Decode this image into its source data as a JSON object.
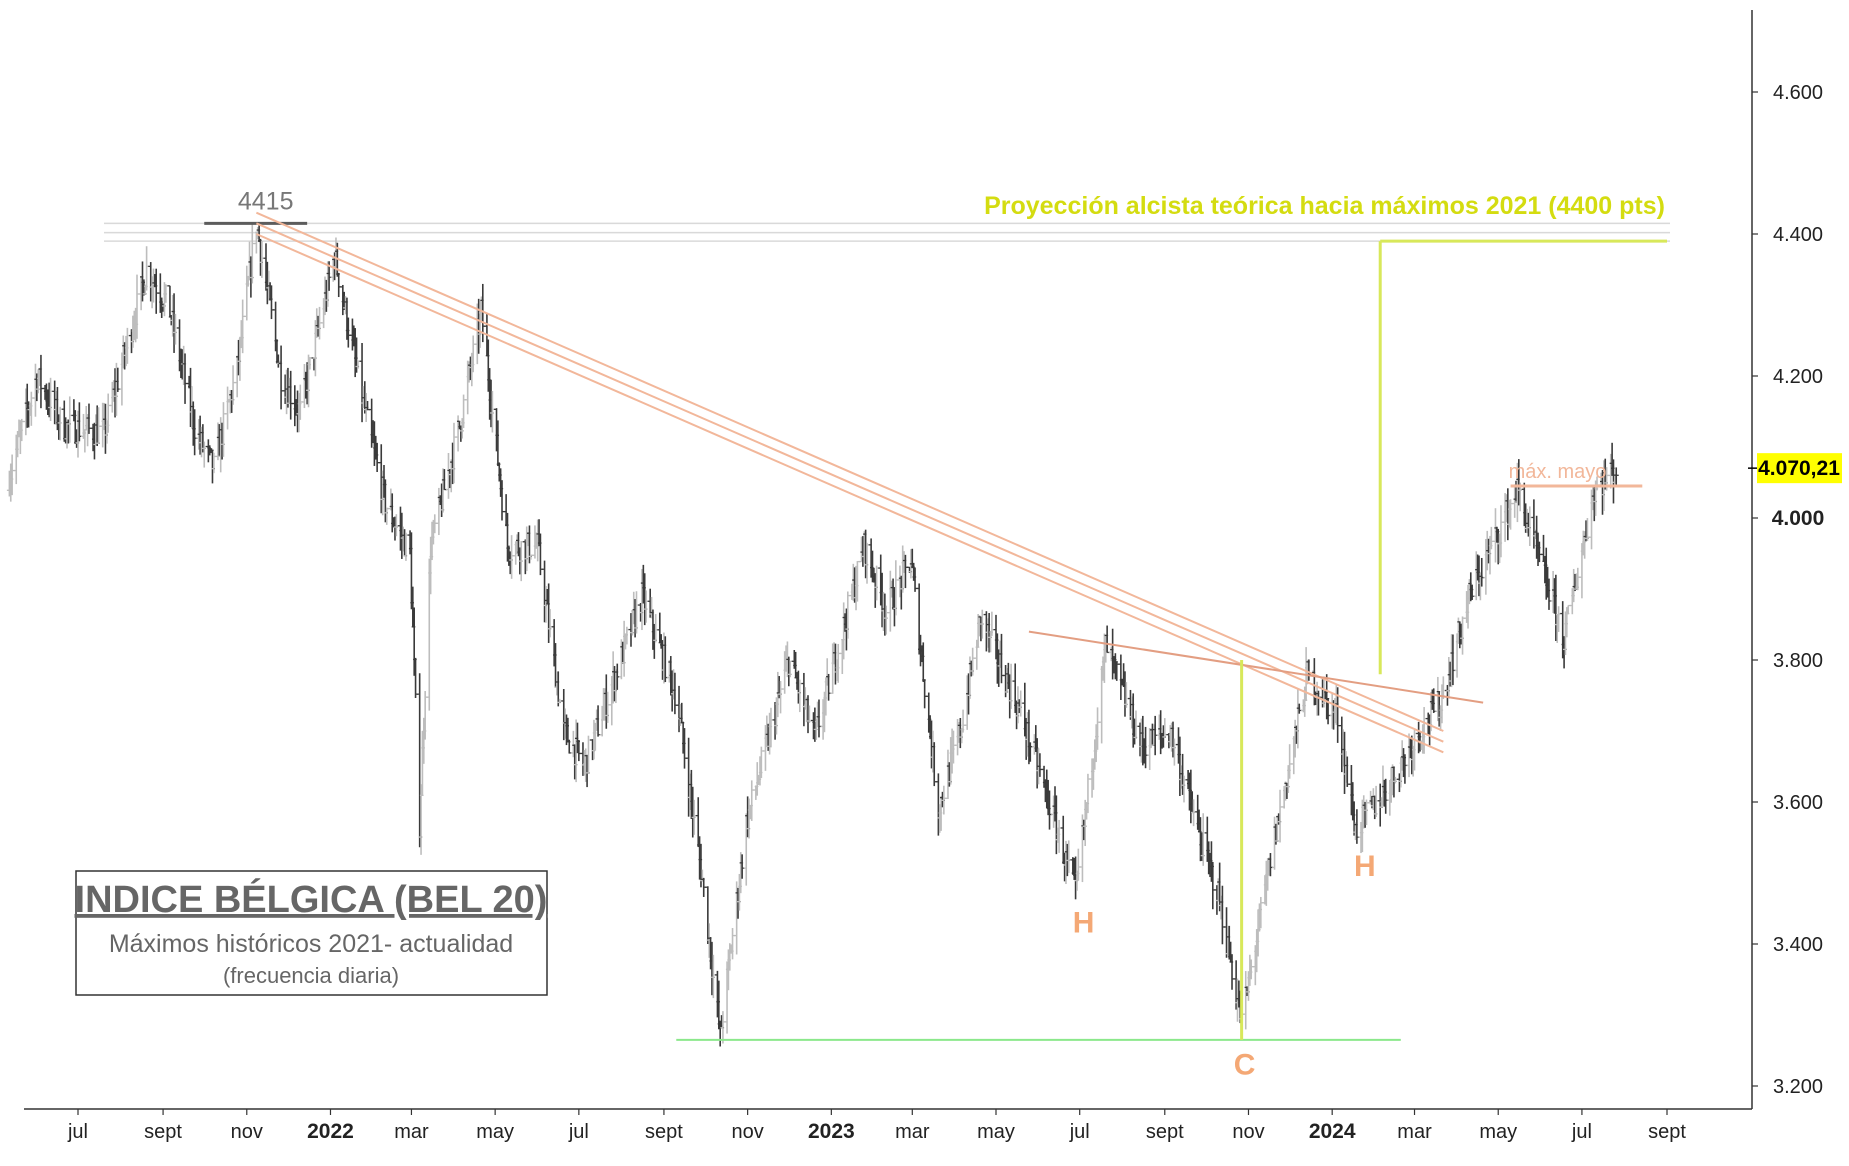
{
  "chart_data": {
    "type": "candlestick",
    "title": "INDICE BÉLGICA (BEL 20)",
    "subtitle": "Máximos históricos 2021- actualidad",
    "note": "(frecuencia diaria)",
    "ylim": [
      3150,
      4750
    ],
    "y_ticks": [
      {
        "value": 3200,
        "label": "3.200",
        "bold": false
      },
      {
        "value": 3400,
        "label": "3.400",
        "bold": false
      },
      {
        "value": 3600,
        "label": "3.600",
        "bold": false
      },
      {
        "value": 3800,
        "label": "3.800",
        "bold": false
      },
      {
        "value": 4000,
        "label": "4.000",
        "bold": true
      },
      {
        "value": 4200,
        "label": "4.200",
        "bold": false
      },
      {
        "value": 4400,
        "label": "4.400",
        "bold": false
      },
      {
        "value": 4600,
        "label": "4.600",
        "bold": false
      }
    ],
    "x_ticks": [
      {
        "date": "2021-07-01",
        "label": "jul",
        "bold": false
      },
      {
        "date": "2021-09-01",
        "label": "sept",
        "bold": false
      },
      {
        "date": "2021-11-01",
        "label": "nov",
        "bold": false
      },
      {
        "date": "2022-01-01",
        "label": "2022",
        "bold": true
      },
      {
        "date": "2022-03-01",
        "label": "mar",
        "bold": false
      },
      {
        "date": "2022-05-01",
        "label": "may",
        "bold": false
      },
      {
        "date": "2022-07-01",
        "label": "jul",
        "bold": false
      },
      {
        "date": "2022-09-01",
        "label": "sept",
        "bold": false
      },
      {
        "date": "2022-11-01",
        "label": "nov",
        "bold": false
      },
      {
        "date": "2023-01-01",
        "label": "2023",
        "bold": true
      },
      {
        "date": "2023-03-01",
        "label": "mar",
        "bold": false
      },
      {
        "date": "2023-05-01",
        "label": "may",
        "bold": false
      },
      {
        "date": "2023-07-01",
        "label": "jul",
        "bold": false
      },
      {
        "date": "2023-09-01",
        "label": "sept",
        "bold": false
      },
      {
        "date": "2023-11-01",
        "label": "nov",
        "bold": false
      },
      {
        "date": "2024-01-01",
        "label": "2024",
        "bold": true
      },
      {
        "date": "2024-03-01",
        "label": "mar",
        "bold": false
      },
      {
        "date": "2024-05-01",
        "label": "may",
        "bold": false
      },
      {
        "date": "2024-07-01",
        "label": "jul",
        "bold": false
      },
      {
        "date": "2024-09-01",
        "label": "sept",
        "bold": false
      }
    ],
    "price_path": [
      {
        "date": "2021-05-12",
        "value": 4060
      },
      {
        "date": "2021-06-01",
        "value": 4200
      },
      {
        "date": "2021-06-20",
        "value": 4130
      },
      {
        "date": "2021-07-20",
        "value": 4120
      },
      {
        "date": "2021-08-20",
        "value": 4350
      },
      {
        "date": "2021-09-05",
        "value": 4300
      },
      {
        "date": "2021-09-25",
        "value": 4120
      },
      {
        "date": "2021-10-08",
        "value": 4070
      },
      {
        "date": "2021-10-25",
        "value": 4210
      },
      {
        "date": "2021-11-08",
        "value": 4415
      },
      {
        "date": "2021-11-26",
        "value": 4200
      },
      {
        "date": "2021-12-10",
        "value": 4150
      },
      {
        "date": "2022-01-04",
        "value": 4370
      },
      {
        "date": "2022-01-25",
        "value": 4160
      },
      {
        "date": "2022-02-10",
        "value": 4020
      },
      {
        "date": "2022-02-28",
        "value": 3950
      },
      {
        "date": "2022-03-07",
        "value": 3570
      },
      {
        "date": "2022-03-15",
        "value": 3960
      },
      {
        "date": "2022-04-05",
        "value": 4130
      },
      {
        "date": "2022-04-21",
        "value": 4290
      },
      {
        "date": "2022-05-10",
        "value": 3960
      },
      {
        "date": "2022-06-01",
        "value": 3960
      },
      {
        "date": "2022-06-20",
        "value": 3700
      },
      {
        "date": "2022-07-05",
        "value": 3650
      },
      {
        "date": "2022-08-16",
        "value": 3890
      },
      {
        "date": "2022-09-10",
        "value": 3750
      },
      {
        "date": "2022-09-29",
        "value": 3490
      },
      {
        "date": "2022-10-12",
        "value": 3270
      },
      {
        "date": "2022-10-31",
        "value": 3570
      },
      {
        "date": "2022-12-01",
        "value": 3800
      },
      {
        "date": "2022-12-20",
        "value": 3690
      },
      {
        "date": "2023-01-25",
        "value": 3960
      },
      {
        "date": "2023-02-10",
        "value": 3870
      },
      {
        "date": "2023-02-28",
        "value": 3940
      },
      {
        "date": "2023-03-20",
        "value": 3590
      },
      {
        "date": "2023-04-05",
        "value": 3700
      },
      {
        "date": "2023-04-20",
        "value": 3860
      },
      {
        "date": "2023-05-20",
        "value": 3720
      },
      {
        "date": "2023-06-10",
        "value": 3590
      },
      {
        "date": "2023-06-28",
        "value": 3470
      },
      {
        "date": "2023-07-20",
        "value": 3820
      },
      {
        "date": "2023-08-15",
        "value": 3680
      },
      {
        "date": "2023-09-05",
        "value": 3700
      },
      {
        "date": "2023-09-25",
        "value": 3560
      },
      {
        "date": "2023-10-10",
        "value": 3470
      },
      {
        "date": "2023-10-27",
        "value": 3290
      },
      {
        "date": "2023-11-20",
        "value": 3550
      },
      {
        "date": "2023-12-14",
        "value": 3780
      },
      {
        "date": "2024-01-05",
        "value": 3720
      },
      {
        "date": "2024-01-18",
        "value": 3560
      },
      {
        "date": "2024-02-10",
        "value": 3620
      },
      {
        "date": "2024-03-05",
        "value": 3700
      },
      {
        "date": "2024-03-20",
        "value": 3740
      },
      {
        "date": "2024-04-10",
        "value": 3890
      },
      {
        "date": "2024-05-15",
        "value": 4040
      },
      {
        "date": "2024-06-05",
        "value": 3910
      },
      {
        "date": "2024-06-18",
        "value": 3830
      },
      {
        "date": "2024-07-10",
        "value": 4040
      },
      {
        "date": "2024-07-26",
        "value": 4070
      }
    ],
    "current_price": {
      "value": 4070.21,
      "label": "4.070,21"
    },
    "overlays": {
      "resistance_4415": {
        "label": "4415",
        "value": 4415,
        "from": "2021-10-01",
        "to": "2021-12-15"
      },
      "upper_bands": [
        4415,
        4402,
        4390
      ],
      "downtrend_lines": [
        {
          "from": {
            "date": "2021-11-08",
            "value": 4430
          },
          "to": {
            "date": "2024-03-22",
            "value": 3700
          }
        },
        {
          "from": {
            "date": "2021-11-08",
            "value": 4415
          },
          "to": {
            "date": "2024-03-22",
            "value": 3685
          }
        },
        {
          "from": {
            "date": "2021-11-08",
            "value": 4400
          },
          "to": {
            "date": "2024-03-22",
            "value": 3670
          }
        }
      ],
      "neckline": {
        "from": {
          "date": "2023-05-25",
          "value": 3840
        },
        "to": {
          "date": "2024-04-20",
          "value": 3740
        }
      },
      "support": {
        "value": 3265,
        "from": "2022-09-10",
        "to": "2024-02-20"
      },
      "measure_c": {
        "date": "2023-10-27",
        "from_value": 3265,
        "to_value": 3800
      },
      "projection": {
        "date": "2024-02-05",
        "from_value": 3780,
        "to_value": 4390,
        "end_date": "2024-09-01",
        "label": "Proyección alcista teórica hacia máximos 2021 (4400 pts)"
      },
      "max_mayo": {
        "value": 4045,
        "from": "2024-05-10",
        "to": "2024-08-14",
        "label": "máx. mayo"
      },
      "markers": [
        {
          "label": "H",
          "date": "2023-06-28",
          "value": 3430
        },
        {
          "label": "C",
          "date": "2023-10-27",
          "value": 3230
        },
        {
          "label": "H",
          "date": "2024-01-19",
          "value": 3510
        }
      ]
    },
    "colors": {
      "bars": "#3a3a3a",
      "bars_light": "#bdbdbd",
      "trend": "#f2b79a",
      "neckline": "#e39e82",
      "support": "#8be88b",
      "projection": "#d8e85a",
      "projection_text": "#d4dc10",
      "markers": "#f4a875",
      "band": "#d9d9d9",
      "resistance": "#5c5c5c",
      "price_tag": "#ffff00"
    },
    "grid": false,
    "legend": "none"
  }
}
